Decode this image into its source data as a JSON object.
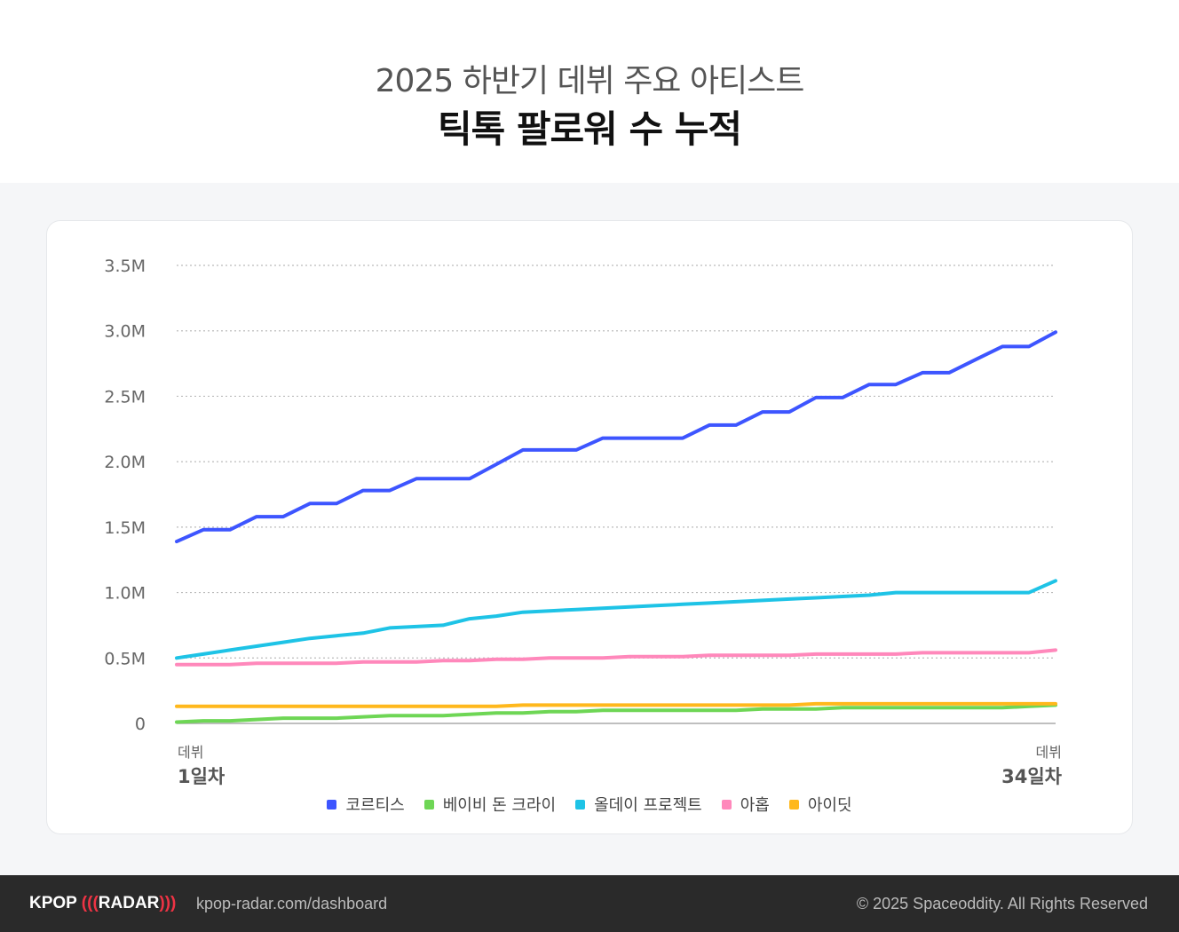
{
  "header": {
    "subtitle": "2025 하반기 데뷔 주요 아티스트",
    "title": "틱톡 팔로워 수 누적"
  },
  "footer": {
    "logo": "KPOP (((RADAR)))",
    "logo_left": "KPOP",
    "logo_waves_left": "(((",
    "logo_right": "RADAR",
    "logo_waves_right": ")))",
    "url": "kpop-radar.com/dashboard",
    "copyright": "© 2025 Spaceoddity. All Rights Reserved"
  },
  "chart_data": {
    "type": "line",
    "title": "틱톡 팔로워 수 누적",
    "xlabel": "",
    "ylabel": "",
    "x_start_label_top": "데뷔",
    "x_start_label": "1일차",
    "x_end_label_top": "데뷔",
    "x_end_label": "34일차",
    "x": [
      1,
      2,
      3,
      4,
      5,
      6,
      7,
      8,
      9,
      10,
      11,
      12,
      13,
      14,
      15,
      16,
      17,
      18,
      19,
      20,
      21,
      22,
      23,
      24,
      25,
      26,
      27,
      28,
      29,
      30,
      31,
      32,
      33,
      34
    ],
    "ylim": [
      0,
      3.5
    ],
    "yticks": [
      {
        "v": 0,
        "label": "0"
      },
      {
        "v": 0.5,
        "label": "0.5M"
      },
      {
        "v": 1,
        "label": "1.0M"
      },
      {
        "v": 1.5,
        "label": "1.5M"
      },
      {
        "v": 2,
        "label": "2.0M"
      },
      {
        "v": 2.5,
        "label": "2.5M"
      },
      {
        "v": 3,
        "label": "3.0M"
      },
      {
        "v": 3.5,
        "label": "3.5M"
      }
    ],
    "grid": true,
    "legend": "bottom",
    "series": [
      {
        "name": "코르티스",
        "color": "#3d55ff",
        "values": [
          1.39,
          1.48,
          1.48,
          1.58,
          1.58,
          1.68,
          1.68,
          1.78,
          1.78,
          1.87,
          1.87,
          1.87,
          1.98,
          2.09,
          2.09,
          2.09,
          2.18,
          2.18,
          2.18,
          2.18,
          2.28,
          2.28,
          2.38,
          2.38,
          2.49,
          2.49,
          2.59,
          2.59,
          2.68,
          2.68,
          2.78,
          2.88,
          2.88,
          2.99
        ]
      },
      {
        "name": "베이비 돈 크라이",
        "color": "#6ed655",
        "values": [
          0.01,
          0.02,
          0.02,
          0.03,
          0.04,
          0.04,
          0.04,
          0.05,
          0.06,
          0.06,
          0.06,
          0.07,
          0.08,
          0.08,
          0.09,
          0.09,
          0.1,
          0.1,
          0.1,
          0.1,
          0.1,
          0.1,
          0.11,
          0.11,
          0.11,
          0.12,
          0.12,
          0.12,
          0.12,
          0.12,
          0.12,
          0.12,
          0.13,
          0.14
        ]
      },
      {
        "name": "올데이 프로젝트",
        "color": "#1ec3e6",
        "values": [
          0.5,
          0.53,
          0.56,
          0.59,
          0.62,
          0.65,
          0.67,
          0.69,
          0.73,
          0.74,
          0.75,
          0.8,
          0.82,
          0.85,
          0.86,
          0.87,
          0.88,
          0.89,
          0.9,
          0.91,
          0.92,
          0.93,
          0.94,
          0.95,
          0.96,
          0.97,
          0.98,
          1.0,
          1.0,
          1.0,
          1.0,
          1.0,
          1.0,
          1.09
        ]
      },
      {
        "name": "아홉",
        "color": "#ff88bb",
        "values": [
          0.45,
          0.45,
          0.45,
          0.46,
          0.46,
          0.46,
          0.46,
          0.47,
          0.47,
          0.47,
          0.48,
          0.48,
          0.49,
          0.49,
          0.5,
          0.5,
          0.5,
          0.51,
          0.51,
          0.51,
          0.52,
          0.52,
          0.52,
          0.52,
          0.53,
          0.53,
          0.53,
          0.53,
          0.54,
          0.54,
          0.54,
          0.54,
          0.54,
          0.56
        ]
      },
      {
        "name": "아이딧",
        "color": "#ffb81c",
        "values": [
          0.13,
          0.13,
          0.13,
          0.13,
          0.13,
          0.13,
          0.13,
          0.13,
          0.13,
          0.13,
          0.13,
          0.13,
          0.13,
          0.14,
          0.14,
          0.14,
          0.14,
          0.14,
          0.14,
          0.14,
          0.14,
          0.14,
          0.14,
          0.14,
          0.15,
          0.15,
          0.15,
          0.15,
          0.15,
          0.15,
          0.15,
          0.15,
          0.15,
          0.15
        ]
      }
    ]
  }
}
